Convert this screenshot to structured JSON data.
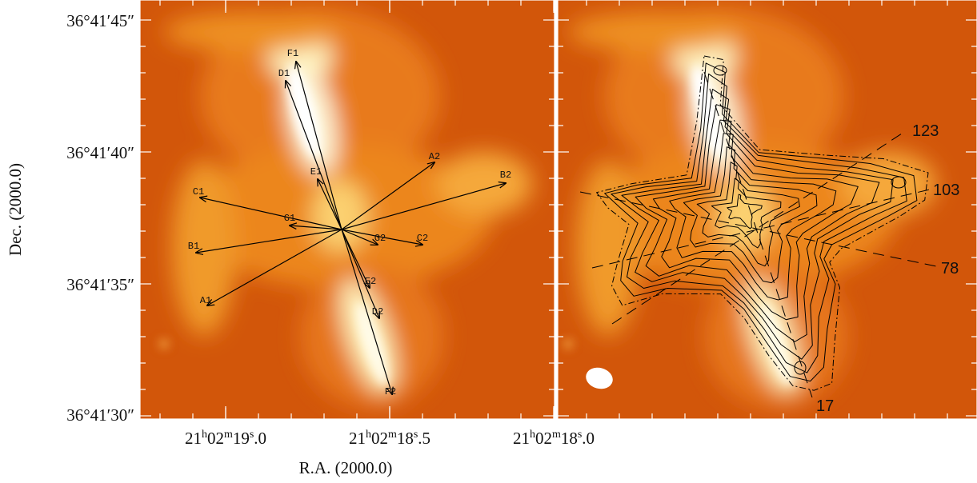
{
  "figure": {
    "y_axis": {
      "label": "Dec. (2000.0)",
      "ticks": [
        "36°41′45″",
        "36°41′40″",
        "36°41′35″",
        "36°41′30″"
      ]
    },
    "x_axis": {
      "label": "R.A. (2000.0)",
      "ticks": [
        [
          {
            "text": "21"
          },
          {
            "text": "h",
            "sup": true
          },
          {
            "text": "02"
          },
          {
            "text": "m",
            "sup": true
          },
          {
            "text": "19"
          },
          {
            "text": "s",
            "sup": true
          },
          {
            "text": ".0"
          }
        ],
        [
          {
            "text": "21"
          },
          {
            "text": "h",
            "sup": true
          },
          {
            "text": "02"
          },
          {
            "text": "m",
            "sup": true
          },
          {
            "text": "18"
          },
          {
            "text": "s",
            "sup": true
          },
          {
            "text": ".5"
          }
        ],
        [
          {
            "text": "21"
          },
          {
            "text": "h",
            "sup": true
          },
          {
            "text": "02"
          },
          {
            "text": "m",
            "sup": true
          },
          {
            "text": "18"
          },
          {
            "text": "s",
            "sup": true
          },
          {
            "text": ".0"
          }
        ]
      ]
    },
    "left_panel": {
      "arrow_labels": [
        "F1",
        "D1",
        "E1",
        "A2",
        "B2",
        "C1",
        "G1",
        "C2",
        "G2",
        "B1",
        "E2",
        "D2",
        "A1",
        "F2"
      ]
    },
    "right_panel": {
      "line_labels": [
        "123",
        "103",
        "78",
        "17"
      ]
    }
  }
}
